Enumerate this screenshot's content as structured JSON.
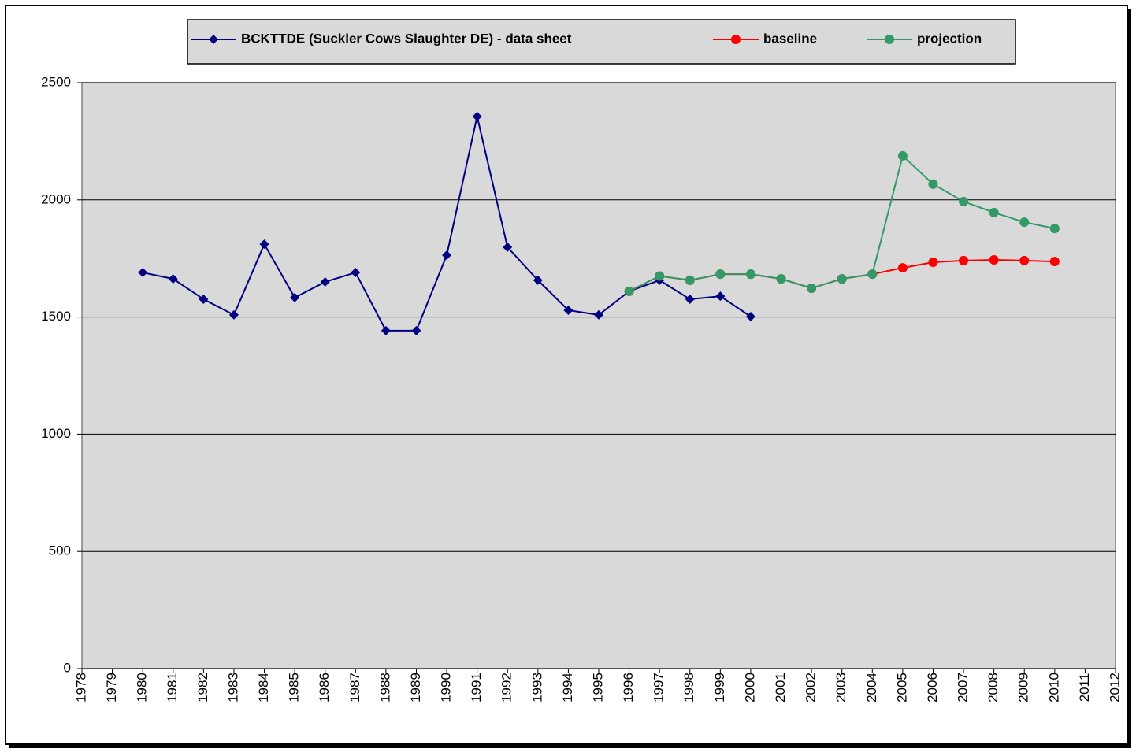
{
  "chart_data": {
    "type": "line",
    "categories": [
      "1978",
      "1979",
      "1980",
      "1981",
      "1982",
      "1983",
      "1984",
      "1985",
      "1986",
      "1987",
      "1988",
      "1989",
      "1990",
      "1991",
      "1992",
      "1993",
      "1994",
      "1995",
      "1996",
      "1997",
      "1998",
      "1999",
      "2000",
      "2001",
      "2002",
      "2003",
      "2004",
      "2005",
      "2006",
      "2007",
      "2008",
      "2009",
      "2010",
      "2011",
      "2012"
    ],
    "series": [
      {
        "name": "BCKTTDE (Suckler Cows Slaughter DE) - data sheet",
        "color": "#000080",
        "marker": "diamond",
        "values": [
          null,
          null,
          1690,
          1663,
          1576,
          1509,
          1811,
          1583,
          1650,
          1690,
          1442,
          1442,
          1764,
          2356,
          1798,
          1657,
          1529,
          1509,
          1610,
          1657,
          1576,
          1589,
          1502,
          null,
          null,
          null,
          null,
          null,
          null,
          null,
          null,
          null,
          null,
          null,
          null
        ]
      },
      {
        "name": "baseline",
        "color": "#ff0000",
        "marker": "circle",
        "values": [
          null,
          null,
          null,
          null,
          null,
          null,
          null,
          null,
          null,
          null,
          null,
          null,
          null,
          null,
          null,
          null,
          null,
          null,
          1610,
          1675,
          1657,
          1683,
          1683,
          1663,
          1623,
          1663,
          1683,
          1710,
          1734,
          1741,
          1744,
          1741,
          1737,
          null,
          null
        ]
      },
      {
        "name": "projection",
        "color": "#339966",
        "marker": "circle",
        "values": [
          null,
          null,
          null,
          null,
          null,
          null,
          null,
          null,
          null,
          null,
          null,
          null,
          null,
          null,
          null,
          null,
          null,
          null,
          1610,
          1675,
          1657,
          1683,
          1683,
          1663,
          1623,
          1663,
          1683,
          2188,
          2067,
          1993,
          1946,
          1905,
          1878,
          null,
          null
        ]
      }
    ],
    "ylim": [
      0,
      2500
    ],
    "yticks": [
      0,
      500,
      1000,
      1500,
      2000,
      2500
    ],
    "grid": true,
    "legend": "top"
  }
}
